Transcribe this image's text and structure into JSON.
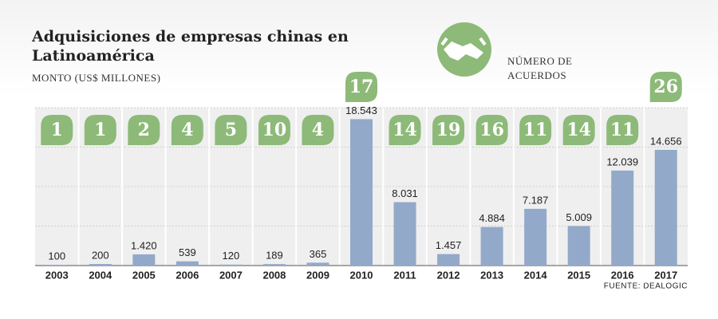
{
  "chart_data": {
    "type": "bar",
    "title": "Adquisiciones de empresas chinas en Latinoamérica",
    "subtitle": "MONTO (US$ MILLONES)",
    "deals_label": "NÚMERO DE ACUERDOS",
    "source": "FUENTE: DEALOGIC",
    "categories": [
      "2003",
      "2004",
      "2005",
      "2006",
      "2007",
      "2008",
      "2009",
      "2010",
      "2011",
      "2012",
      "2013",
      "2014",
      "2015",
      "2016",
      "2017"
    ],
    "values": [
      100,
      200,
      1420,
      539,
      120,
      189,
      365,
      18543,
      8031,
      1457,
      4884,
      7187,
      5009,
      12039,
      14656
    ],
    "value_labels": [
      "100",
      "200",
      "1.420",
      "539",
      "120",
      "189",
      "365",
      "18.543",
      "8.031",
      "1.457",
      "4.884",
      "7.187",
      "5.009",
      "12.039",
      "14.656"
    ],
    "deals": [
      1,
      1,
      2,
      4,
      5,
      10,
      4,
      17,
      14,
      19,
      16,
      11,
      14,
      11,
      26
    ],
    "color": "#93a9c9",
    "deals_color": "#8dba78",
    "ylim": [
      0,
      20000
    ],
    "yticks": [
      0,
      5000,
      10000,
      15000,
      20000
    ],
    "grid": true
  }
}
